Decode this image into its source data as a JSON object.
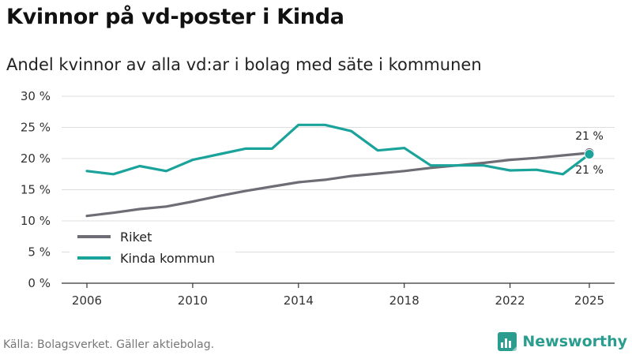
{
  "title": "Kvinnor på vd-poster i Kinda",
  "subtitle": "Andel kvinnor av alla vd:ar i bolag med säte i kommunen",
  "source": "Källa: Bolagsverket. Gäller aktiebolag.",
  "brand": "Newsworthy",
  "colors": {
    "riket": "#6e6c75",
    "kinda": "#1aa39a",
    "grid": "#dddddd",
    "axis": "#333333"
  },
  "chart_data": {
    "type": "line",
    "title": "Kvinnor på vd-poster i Kinda",
    "subtitle": "Andel kvinnor av alla vd:ar i bolag med säte i kommunen",
    "xlabel": "",
    "ylabel": "",
    "x": [
      2006,
      2007,
      2008,
      2009,
      2010,
      2011,
      2012,
      2013,
      2014,
      2015,
      2016,
      2017,
      2018,
      2019,
      2020,
      2021,
      2022,
      2023,
      2024,
      2025
    ],
    "xlim": [
      2006,
      2025
    ],
    "ylim": [
      0,
      30
    ],
    "yticks": [
      0,
      5,
      10,
      15,
      20,
      25,
      30
    ],
    "ytick_labels": [
      "0 %",
      "5 %",
      "10 %",
      "15 %",
      "20 %",
      "25 %",
      "30 %"
    ],
    "xticks": [
      2006,
      2010,
      2014,
      2018,
      2022,
      2025
    ],
    "xtick_labels": [
      "2006",
      "2010",
      "2014",
      "2018",
      "2022",
      "2025"
    ],
    "grid": true,
    "legend_position": "bottom-left",
    "series": [
      {
        "name": "Riket",
        "color": "#6e6c75",
        "values": [
          10.8,
          11.3,
          11.9,
          12.3,
          13.1,
          14.0,
          14.8,
          15.5,
          16.2,
          16.6,
          17.2,
          17.6,
          18.0,
          18.5,
          18.9,
          19.3,
          19.8,
          20.1,
          20.5,
          20.9
        ],
        "end_label": "21 %"
      },
      {
        "name": "Kinda kommun",
        "color": "#1aa39a",
        "values": [
          18.0,
          17.5,
          18.8,
          18.0,
          19.8,
          20.7,
          21.6,
          21.6,
          25.4,
          25.4,
          24.4,
          21.3,
          21.7,
          18.9,
          18.9,
          18.9,
          18.1,
          18.2,
          17.5,
          20.7
        ],
        "end_label": "21 %"
      }
    ]
  }
}
